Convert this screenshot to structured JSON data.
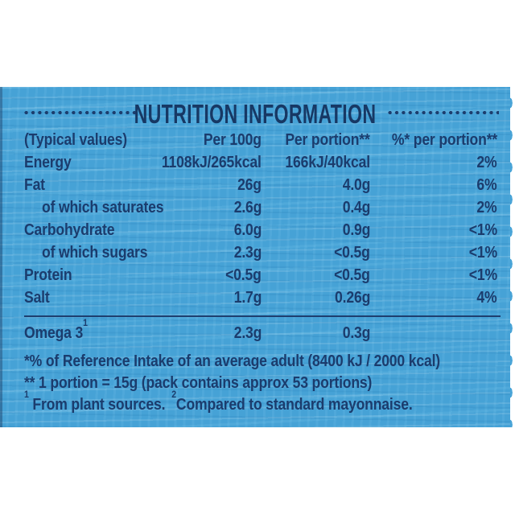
{
  "title": "NUTRITION INFORMATION",
  "colors": {
    "panel_blue": "#46A2D6",
    "text_navy": "#1B3C6D",
    "package_edge_white": "#FFFFFF"
  },
  "table": {
    "header": [
      "(Typical values)",
      "Per 100g",
      "Per portion**",
      "%* per portion**"
    ],
    "rows": [
      {
        "label": "Energy",
        "per_100g": "1108kJ/265kcal",
        "per_portion": "166kJ/40kcal",
        "pct_per_portion": "2%"
      },
      {
        "label": "Fat",
        "per_100g": "26g",
        "per_portion": "4.0g",
        "pct_per_portion": "6%"
      },
      {
        "label": "of which saturates",
        "per_100g": "2.6g",
        "per_portion": "0.4g",
        "pct_per_portion": "2%"
      },
      {
        "label": "Carbohydrate",
        "per_100g": "6.0g",
        "per_portion": "0.9g",
        "pct_per_portion": "<1%"
      },
      {
        "label": "of which sugars",
        "per_100g": "2.3g",
        "per_portion": "<0.5g",
        "pct_per_portion": "<1%"
      },
      {
        "label": "Protein",
        "per_100g": "<0.5g",
        "per_portion": "<0.5g",
        "pct_per_portion": "<1%"
      },
      {
        "label": "Salt",
        "per_100g": "1.7g",
        "per_portion": "0.26g",
        "pct_per_portion": "4%"
      }
    ],
    "omega_row": {
      "label": "Omega 3",
      "label_superscript": "1",
      "per_100g": "2.3g",
      "per_portion": "0.3g",
      "pct_per_portion": ""
    }
  },
  "footnotes": {
    "reference_intake": "*% of Reference Intake of an average adult (8400 kJ / 2000 kcal)",
    "portion_definition": "** 1 portion = 15g (pack contains approx 53 portions)",
    "sources": {
      "sup1": "1",
      "text1": " From plant sources.",
      "sup2": "2",
      "text2": "Compared to standard mayonnaise."
    }
  }
}
